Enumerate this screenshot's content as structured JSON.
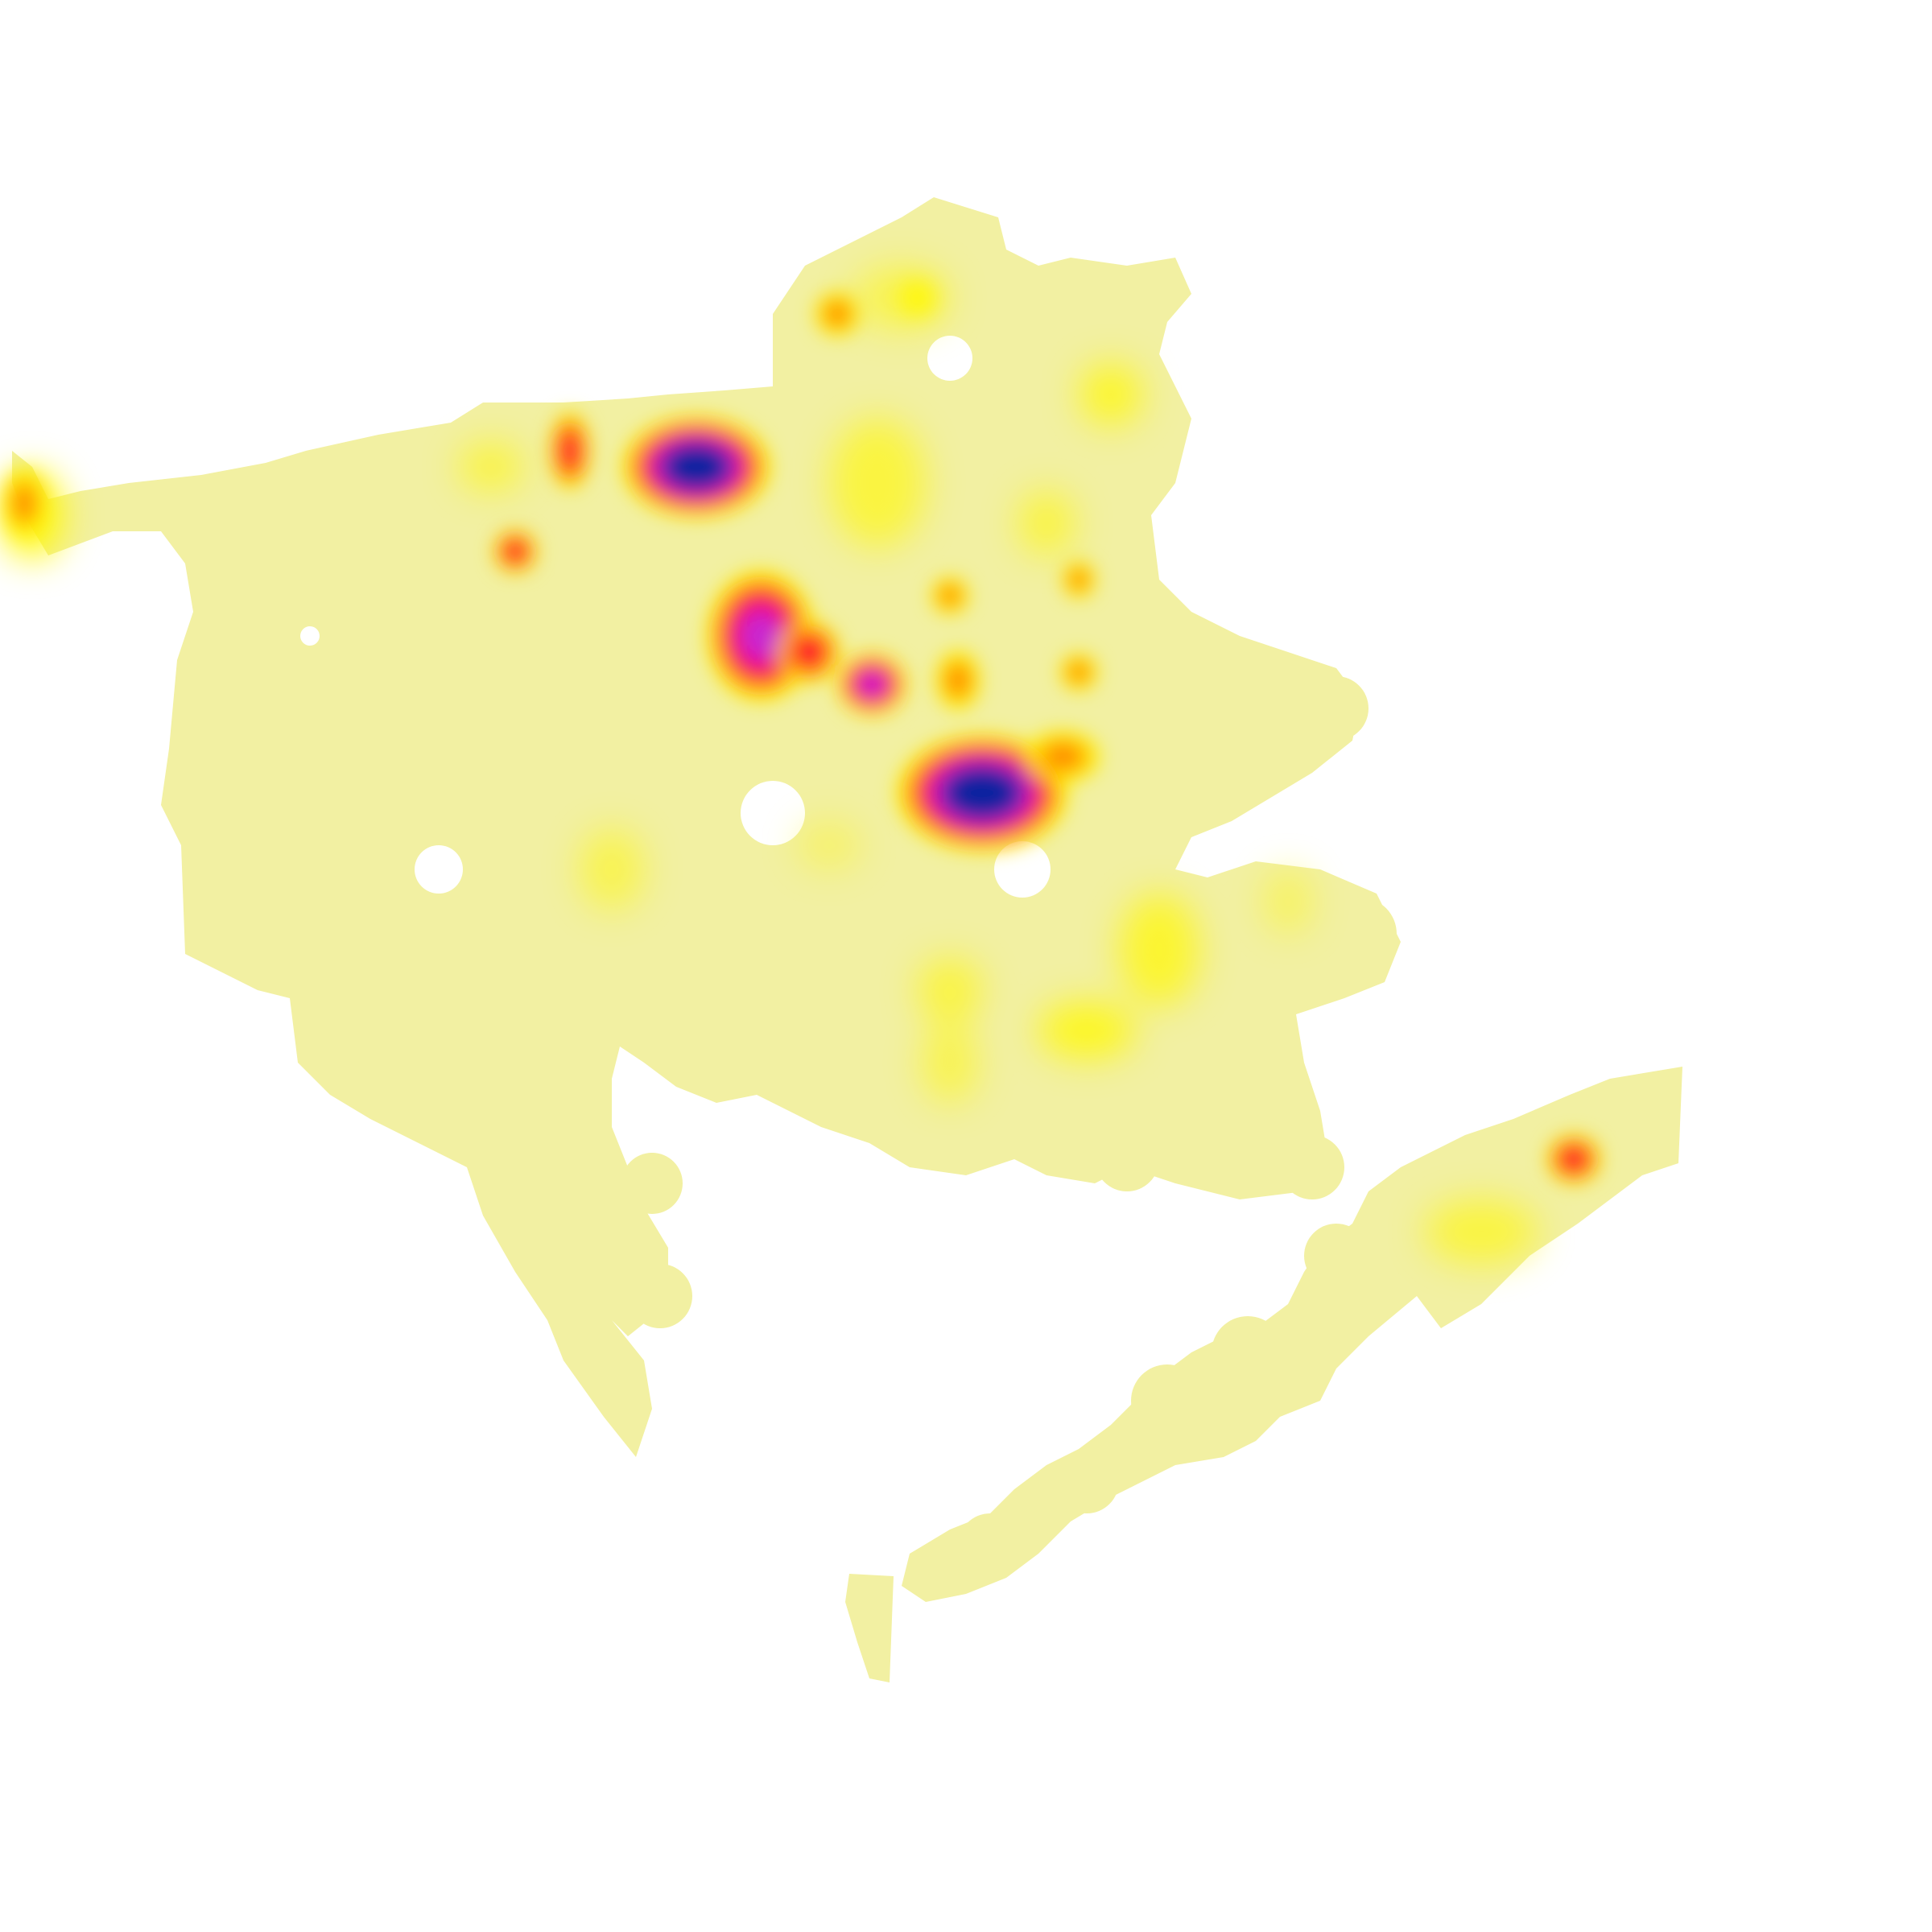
{
  "map": {
    "type": "density-heatmap",
    "background_color": "#ffffff",
    "region_fill_color": "#f2f0a2",
    "color_scale": [
      {
        "level": "low",
        "color": "#f2f0a2"
      },
      {
        "level": "low-mid",
        "color": "#fff700"
      },
      {
        "level": "mid",
        "color": "#ff8c00"
      },
      {
        "level": "high",
        "color": "#ff0040"
      },
      {
        "level": "very-high",
        "color": "#d020d0"
      },
      {
        "level": "max",
        "color": "#1020a0"
      }
    ],
    "hotspot_intensities": {
      "northwest-edge": 0.45,
      "north-central-strip": 0.65,
      "north-central-peak": 1.0,
      "west-small": 0.55,
      "central-ridge": 0.85,
      "central-small": 0.7,
      "southeast-core": 0.95,
      "far-east-island-chain": 0.5
    }
  }
}
